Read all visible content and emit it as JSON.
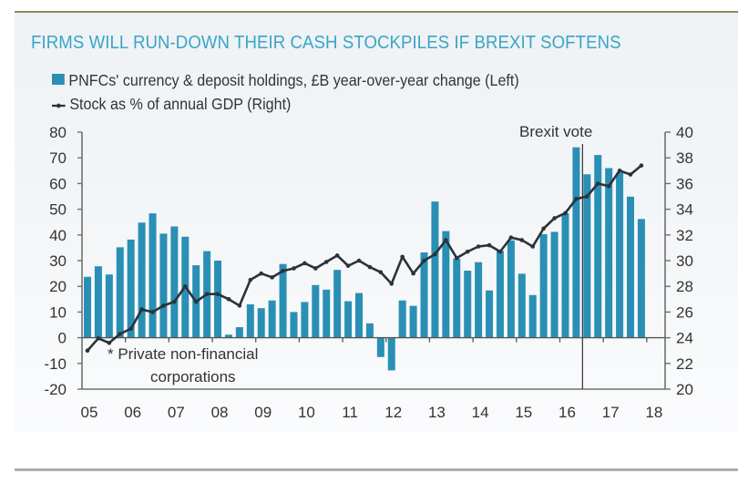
{
  "header": {
    "title": "FIRMS WILL RUN-DOWN THEIR CASH STOCKPILES IF BREXIT SOFTENS"
  },
  "colors": {
    "title": "#3aa5c6",
    "bars": "#2a8fb5",
    "line": "#2b3338",
    "axis": "#707070",
    "top_rule": "#8c8a5c"
  },
  "chart_data": {
    "type": "bar",
    "title": "FIRMS WILL RUN-DOWN THEIR CASH STOCKPILES IF BREXIT SOFTENS",
    "xlabel": "",
    "ylabel": "",
    "x_tick_labels": [
      "05",
      "06",
      "07",
      "08",
      "09",
      "10",
      "11",
      "12",
      "13",
      "14",
      "15",
      "16",
      "17",
      "18"
    ],
    "left_axis": {
      "ylim": [
        -20,
        80
      ],
      "ticks": [
        80,
        70,
        60,
        50,
        40,
        30,
        20,
        10,
        0,
        -10,
        -20
      ]
    },
    "right_axis": {
      "ylim": [
        20,
        40
      ],
      "ticks": [
        40,
        38,
        36,
        34,
        32,
        30,
        28,
        26,
        24,
        22,
        20
      ]
    },
    "x_start": "2005 Q1",
    "frequency": "quarterly",
    "grid": false,
    "legend_position": "top-left",
    "series": [
      {
        "name": "PNFCs' currency & deposit holdings, £B year-over-year change (Left)",
        "type": "bar",
        "axis": "left",
        "values": [
          23.7,
          27.8,
          24.6,
          35.2,
          38.2,
          44.8,
          48.4,
          40.5,
          43.3,
          39.3,
          28.2,
          33.7,
          30.0,
          1.2,
          4.1,
          13.0,
          11.5,
          14.5,
          28.7,
          10.0,
          13.9,
          20.5,
          18.7,
          26.4,
          14.2,
          17.4,
          5.6,
          -7.5,
          -12.7,
          14.5,
          12.4,
          33.2,
          53.0,
          41.5,
          30.8,
          26.1,
          29.4,
          18.4,
          33.8,
          37.9,
          24.9,
          16.6,
          40.3,
          41.2,
          48.4,
          74.1,
          63.6,
          71.1,
          66.0,
          64.2,
          54.9,
          46.2
        ]
      },
      {
        "name": "Stock as % of annual GDP (Right)",
        "type": "line",
        "axis": "right",
        "values": [
          23.0,
          23.95,
          23.6,
          24.3,
          24.7,
          26.2,
          26.0,
          26.5,
          26.8,
          28.0,
          26.8,
          27.4,
          27.4,
          27.0,
          26.5,
          28.5,
          29.0,
          28.7,
          29.2,
          29.4,
          29.8,
          29.4,
          29.9,
          30.4,
          29.6,
          30.0,
          29.5,
          29.1,
          28.2,
          30.3,
          29.0,
          30.0,
          30.5,
          31.6,
          30.2,
          30.7,
          31.1,
          31.2,
          30.7,
          31.8,
          31.6,
          31.1,
          32.5,
          33.3,
          33.7,
          34.8,
          35.0,
          36.0,
          35.8,
          37.0,
          36.7,
          37.4
        ]
      }
    ],
    "annotations": [
      {
        "text": "Brexit vote",
        "at": "2016 Q2/Q3 boundary",
        "type": "vertical-line"
      },
      {
        "text": "* Private non-financial corporations",
        "type": "footnote"
      }
    ]
  },
  "legend": {
    "bars_label": "PNFCs' currency & deposit holdings, £B year-over-year change (Left)",
    "line_label": "Stock as % of annual GDP (Right)"
  },
  "annotations": {
    "brexit_label": "Brexit vote",
    "footnote_line1": "* Private non-financial",
    "footnote_line2": "corporations"
  }
}
